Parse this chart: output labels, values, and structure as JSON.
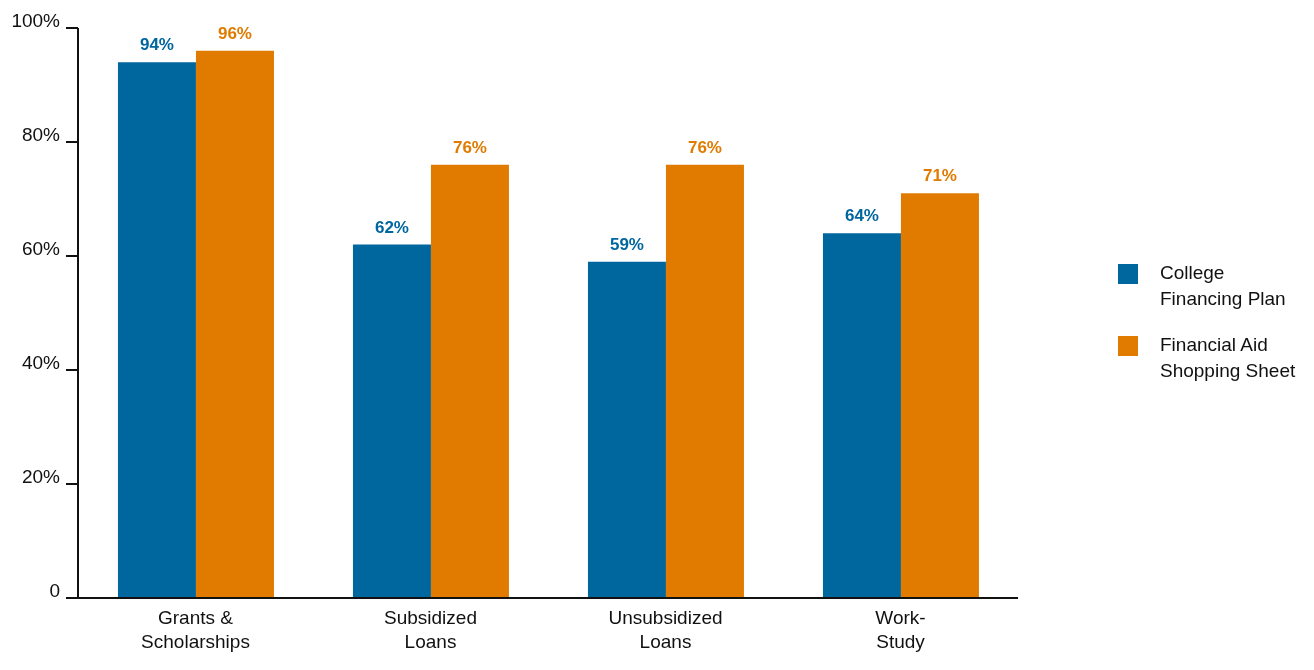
{
  "chart_data": {
    "type": "bar",
    "categories": [
      "Grants & Scholarships",
      "Subsidized Loans",
      "Unsubsidized Loans",
      "Work-Study"
    ],
    "series": [
      {
        "name": "College Financing Plan",
        "color": "#00669e",
        "values": [
          94,
          62,
          59,
          64
        ],
        "value_labels": [
          "94%",
          "62%",
          "59%",
          "64%"
        ]
      },
      {
        "name": "Financial Aid Shopping Sheet",
        "color": "#e07b00",
        "values": [
          96,
          76,
          76,
          71
        ],
        "value_labels": [
          "96%",
          "76%",
          "76%",
          "71%"
        ]
      }
    ],
    "ylim": [
      0,
      100
    ],
    "yticks": [
      0,
      {
        "value": 20,
        "label": "20%"
      },
      {
        "value": 40,
        "label": "40%"
      },
      {
        "value": 60,
        "label": "60%"
      },
      {
        "value": 80,
        "label": "80%"
      },
      {
        "value": 100,
        "label": "100%"
      }
    ],
    "grid": false,
    "legend": "right"
  }
}
